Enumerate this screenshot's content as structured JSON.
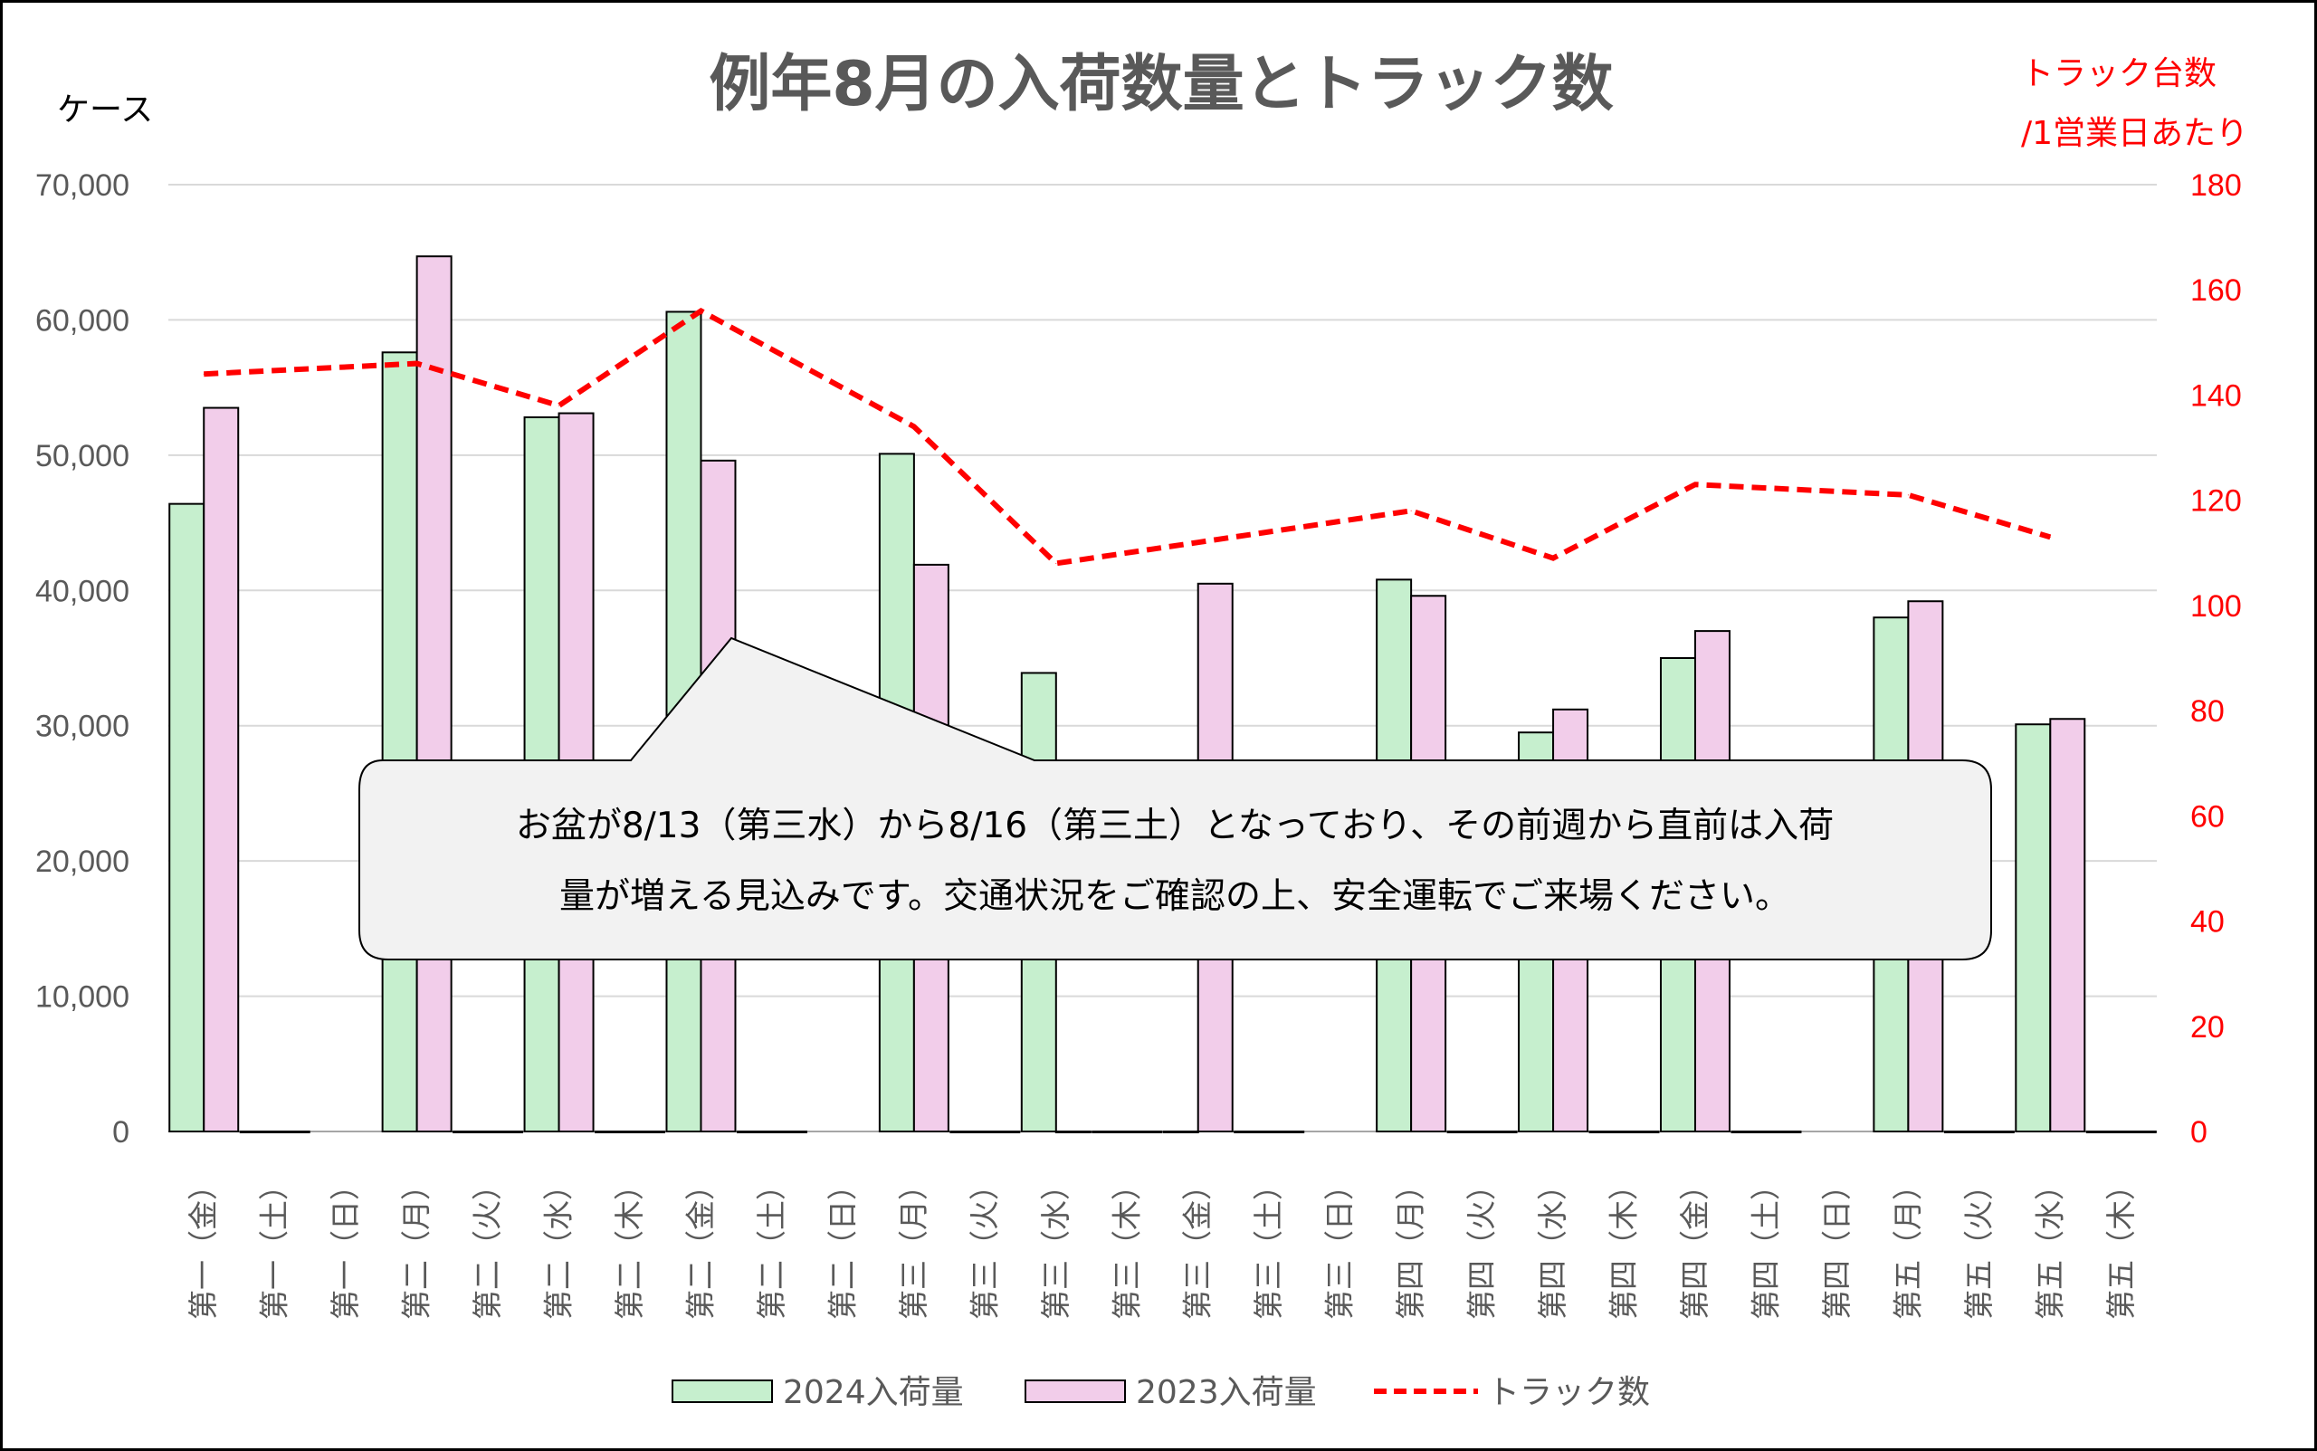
{
  "chart_data": {
    "type": "bar",
    "title": "例年8月の入荷数量とトラック数",
    "ylabel_left": "ケース",
    "ylabel_right_line1": "トラック台数",
    "ylabel_right_line2": "/1営業日あたり",
    "ylim_left": [
      0,
      70000
    ],
    "ylim_right": [
      0,
      180
    ],
    "yticks_left": [
      "70,000",
      "60,000",
      "50,000",
      "40,000",
      "30,000",
      "20,000",
      "10,000",
      "0"
    ],
    "yticks_right": [
      "180",
      "160",
      "140",
      "120",
      "100",
      "80",
      "60",
      "40",
      "20",
      "0"
    ],
    "grid": true,
    "legend_position": "bottom",
    "categories": [
      "第一（金）",
      "第一（土）",
      "第一（日）",
      "第二（月）",
      "第二（火）",
      "第二（水）",
      "第二（木）",
      "第二（金）",
      "第二（土）",
      "第二（日）",
      "第三（月）",
      "第三（火）",
      "第三（水）",
      "第三（木）",
      "第三（金）",
      "第三（土）",
      "第三（日）",
      "第四（月）",
      "第四（火）",
      "第四（水）",
      "第四（木）",
      "第四（金）",
      "第四（土）",
      "第四（日）",
      "第五（月）",
      "第五（火）",
      "第五（水）",
      "第五（木）"
    ],
    "series": [
      {
        "name": "2024入荷量",
        "type": "bar",
        "color": "#c6efce",
        "axis": "left",
        "values": [
          46400,
          0,
          null,
          57600,
          0,
          52800,
          0,
          60600,
          0,
          null,
          50100,
          0,
          33900,
          0,
          0,
          0,
          null,
          40800,
          0,
          29500,
          0,
          35000,
          0,
          null,
          38000,
          0,
          30100,
          0
        ]
      },
      {
        "name": "2023入荷量",
        "type": "bar",
        "color": "#f2cdea",
        "axis": "left",
        "values": [
          53500,
          0,
          null,
          64700,
          0,
          53100,
          0,
          49600,
          0,
          null,
          41900,
          0,
          0,
          0,
          40500,
          0,
          null,
          39600,
          0,
          31200,
          0,
          37000,
          0,
          null,
          39200,
          0,
          30500,
          0
        ]
      },
      {
        "name": "トラック数",
        "type": "line",
        "color": "#ff0000",
        "axis": "right",
        "dashed": true,
        "values": [
          144,
          null,
          null,
          146,
          null,
          138,
          null,
          156,
          null,
          null,
          134,
          null,
          108,
          null,
          112,
          null,
          null,
          118,
          null,
          109,
          null,
          123,
          null,
          null,
          121,
          null,
          113,
          null
        ]
      }
    ],
    "annotation": {
      "line1": "お盆が8/13（第三水）から8/16（第三土）となっており、その前週から直前は入荷",
      "line2": "量が増える見込みです。交通状況をご確認の上、安全運転でご来場ください。"
    }
  }
}
